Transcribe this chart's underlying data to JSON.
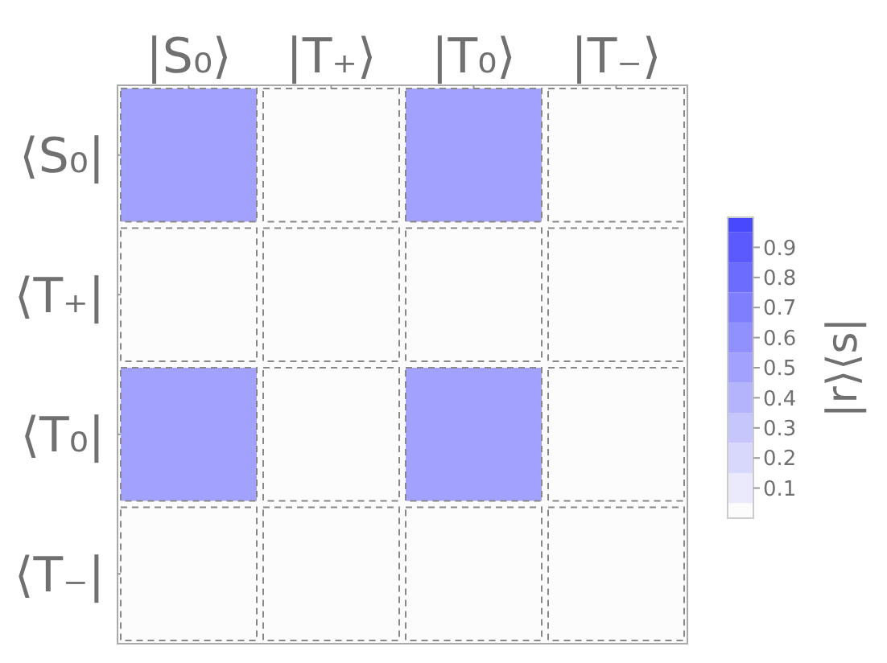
{
  "chart_data": {
    "type": "heatmap",
    "categories": [
      "|S₀⟩",
      "|T₊⟩",
      "|T₀⟩",
      "|T₋⟩"
    ],
    "y_categories": [
      "⟨S₀|",
      "⟨T₊|",
      "⟨T₀|",
      "⟨T₋|"
    ],
    "cells": [
      [
        0.5,
        0,
        0.5,
        0
      ],
      [
        0,
        0,
        0,
        0
      ],
      [
        0.5,
        0,
        0.5,
        0
      ],
      [
        0,
        0,
        0,
        0
      ]
    ],
    "clabel": "|r⟩⟨s|",
    "clim": [
      0,
      1
    ],
    "cticks": [
      0.1,
      0.2,
      0.3,
      0.4,
      0.5,
      0.6,
      0.7,
      0.8,
      0.9
    ]
  }
}
